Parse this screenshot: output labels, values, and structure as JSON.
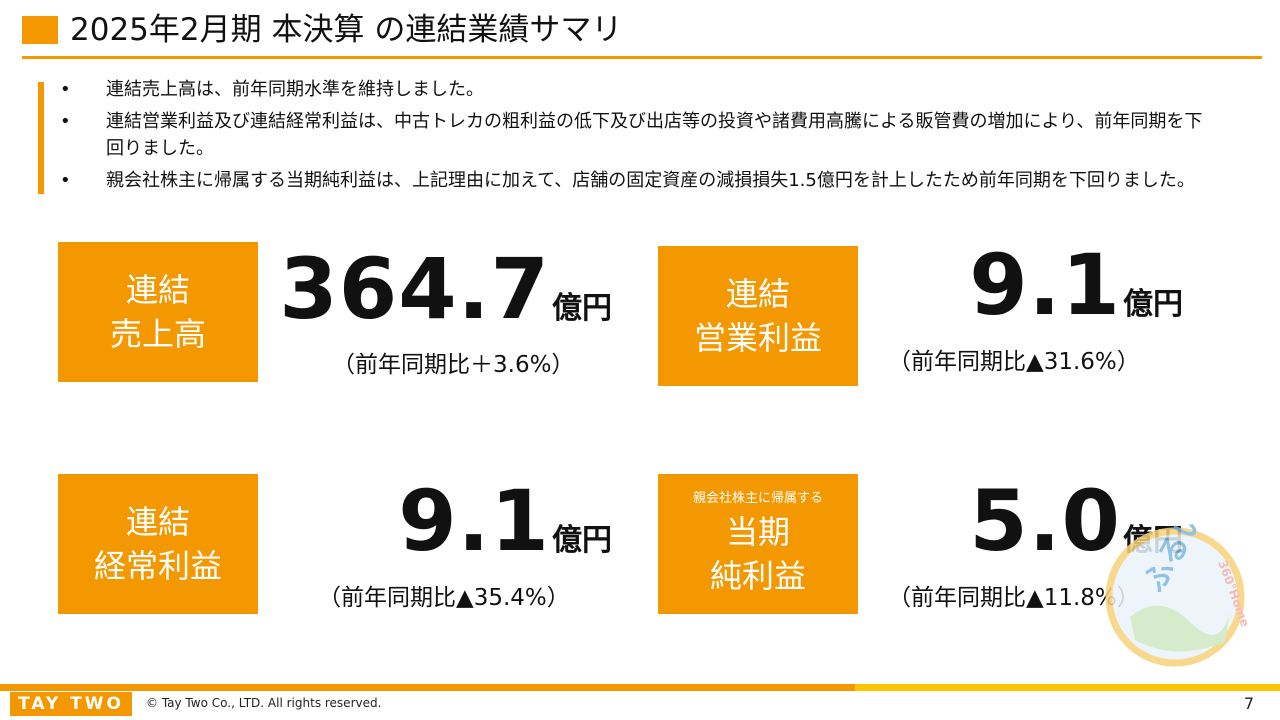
{
  "title": "2025年2月期 本決算 の連結業績サマリ",
  "bullets": [
    "連結売上高は、前年同期水準を維持しました。",
    "連結営業利益及び連結経常利益は、中古トレカの粗利益の低下及び出店等の投資や諸費用高騰による販管費の増加により、前年同期を下回りました。",
    "親会社株主に帰属する当期純利益は、上記理由に加えて、店舗の固定資産の減損損失1.5億円を計上したため前年同期を下回りました。"
  ],
  "bullet_marker": "•",
  "metrics": {
    "sales": {
      "label1": "連結",
      "label2": "売上高",
      "value": "364.7",
      "unit": "億円",
      "yoy": "（前年同期比＋3.6%）"
    },
    "operating": {
      "label1": "連結",
      "label2": "営業利益",
      "value": "9.1",
      "unit": "億円",
      "yoy": "（前年同期比▲31.6%）"
    },
    "ordinary": {
      "label1": "連結",
      "label2": "経常利益",
      "value": "9.1",
      "unit": "億円",
      "yoy": "（前年同期比▲35.4%）"
    },
    "net": {
      "small": "親会社株主に帰属する",
      "label1": "当期",
      "label2": "純利益",
      "value": "5.0",
      "unit": "億円",
      "yoy": "（前年同期比▲11.8%）"
    }
  },
  "footer": {
    "logo": "TAY TWO",
    "copyright": "© Tay Two Co., LTD. All rights reserved.",
    "page": "7"
  },
  "mascot": {
    "text_main": "ふるいち",
    "text_side": "360°Home"
  },
  "colors": {
    "accent": "#f39800",
    "accent_yellow": "#ffc600"
  }
}
